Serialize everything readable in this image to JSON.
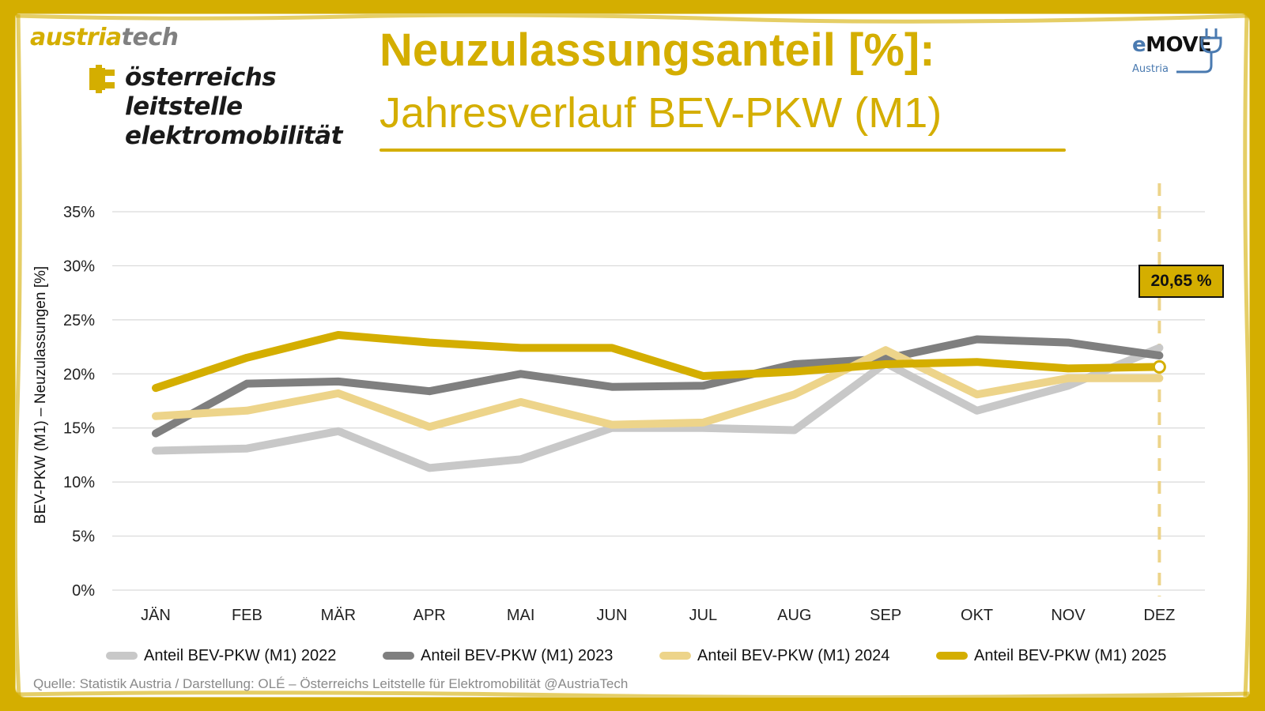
{
  "branding": {
    "austriatech_part1": "austria",
    "austriatech_part2": "tech",
    "ole_lines": [
      "österreichs",
      "leitstelle",
      "elektromobilität"
    ],
    "emove_e": "e",
    "emove_rest": "MOVE",
    "emove_sub": "Austria"
  },
  "header": {
    "title": "Neuzulassungsanteil [%]:",
    "subtitle": "Jahresverlauf BEV-PKW (M1)"
  },
  "colors": {
    "frame": "#D4AE00",
    "series_2022": "#C8C8C8",
    "series_2023": "#7F7F7F",
    "series_2024": "#EDD48A",
    "series_2025": "#D4AE00",
    "grid": "#D9D9D9",
    "marker_line": "#EDD48A"
  },
  "chart_data": {
    "type": "line",
    "title": "Neuzulassungsanteil [%]: Jahresverlauf BEV-PKW (M1)",
    "xlabel": "",
    "ylabel": "BEV-PKW (M1) – Neuzulassungen [%]",
    "ylim": [
      0,
      35
    ],
    "yticks": [
      0,
      5,
      10,
      15,
      20,
      25,
      30,
      35
    ],
    "ytick_labels": [
      "0%",
      "5%",
      "10%",
      "15%",
      "20%",
      "25%",
      "30%",
      "35%"
    ],
    "grid": true,
    "categories": [
      "JÄN",
      "FEB",
      "MÄR",
      "APR",
      "MAI",
      "JUN",
      "JUL",
      "AUG",
      "SEP",
      "OKT",
      "NOV",
      "DEZ"
    ],
    "series": [
      {
        "name": "Anteil BEV-PKW (M1) 2022",
        "color_key": "series_2022",
        "values": [
          12.9,
          13.1,
          14.7,
          11.3,
          12.1,
          15.0,
          15.0,
          14.8,
          21.0,
          16.6,
          18.9,
          22.4
        ]
      },
      {
        "name": "Anteil BEV-PKW (M1) 2023",
        "color_key": "series_2023",
        "values": [
          14.5,
          19.1,
          19.3,
          18.4,
          20.0,
          18.8,
          18.9,
          20.9,
          21.4,
          23.2,
          22.9,
          21.7
        ]
      },
      {
        "name": "Anteil BEV-PKW (M1) 2024",
        "color_key": "series_2024",
        "values": [
          16.1,
          16.6,
          18.2,
          15.1,
          17.4,
          15.3,
          15.5,
          18.1,
          22.2,
          18.1,
          19.6,
          19.6
        ]
      },
      {
        "name": "Anteil BEV-PKW (M1) 2025",
        "color_key": "series_2025",
        "values": [
          18.7,
          21.5,
          23.6,
          22.9,
          22.4,
          22.4,
          19.8,
          20.2,
          20.9,
          21.1,
          20.5,
          20.65
        ]
      }
    ],
    "legend_position": "bottom",
    "annotation": {
      "label": "20,65 %",
      "category": "DEZ",
      "value": 20.65,
      "series": "Anteil BEV-PKW (M1) 2025"
    }
  },
  "footer": {
    "source": "Quelle: Statistik Austria / Darstellung: OLÉ – Österreichs Leitstelle für Elektromobilität @AustriaTech"
  }
}
